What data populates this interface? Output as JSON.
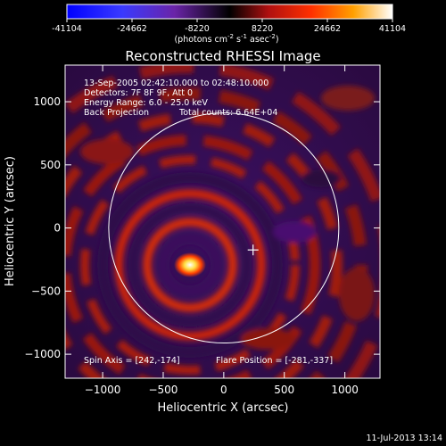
{
  "chart_data": {
    "type": "heatmap",
    "title": "Reconstructed RHESSI Image",
    "xlabel": "Heliocentric X (arcsec)",
    "ylabel": "Heliocentric Y (arcsec)",
    "xlim": [
      -1310,
      1290
    ],
    "ylim": [
      -1190,
      1290
    ],
    "x_ticks": [
      -1000,
      -500,
      0,
      500,
      1000
    ],
    "y_ticks": [
      -1000,
      -500,
      0,
      500,
      1000
    ],
    "colorbar": {
      "ticks": [
        -41104,
        -24662,
        -8220,
        8220,
        24662,
        41104
      ],
      "tick_labels": [
        "-41104",
        "-24662",
        "-8220",
        "8220",
        "24662",
        "41104"
      ],
      "unit_main": "(photons cm",
      "unit_exp1": "-2",
      "unit_mid": " s",
      "unit_exp2": "-1",
      "unit_tail": " asec",
      "unit_exp3": "-2",
      "unit_close": ")"
    },
    "annotations": [
      "13-Sep-2005 02:42:10.000 to 02:48:10.000",
      "Detectors: 7F 8F 9F, Att 0",
      "Energy Range: 6.0 - 25.0 keV",
      "Back Projection",
      "Total counts: 6.64E+04"
    ],
    "spin_axis_label": "Spin Axis = [242,-174]",
    "flare_position_label": "Flare Position = [-281,-337]",
    "spin_axis": [
      242,
      -174
    ],
    "flare_position": [
      -281,
      -337
    ],
    "solar_limb_radius": 950,
    "timestamp": "11-Jul-2013 13:14"
  }
}
